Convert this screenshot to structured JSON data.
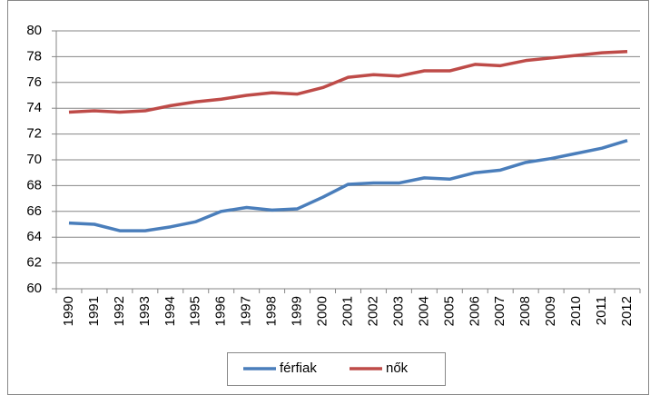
{
  "chart_data": {
    "type": "line",
    "categories": [
      "1990",
      "1991",
      "1992",
      "1993",
      "1994",
      "1995",
      "1996",
      "1997",
      "1998",
      "1999",
      "2000",
      "2001",
      "2002",
      "2003",
      "2004",
      "2005",
      "2006",
      "2007",
      "2008",
      "2009",
      "2010",
      "2011",
      "2012"
    ],
    "series": [
      {
        "name": "férfiak",
        "color": "#4a7ebb",
        "values": [
          65.1,
          65.0,
          64.5,
          64.5,
          64.8,
          65.2,
          66.0,
          66.3,
          66.1,
          66.2,
          67.1,
          68.1,
          68.2,
          68.2,
          68.6,
          68.5,
          69.0,
          69.2,
          69.8,
          70.1,
          70.5,
          70.9,
          71.5
        ]
      },
      {
        "name": "nők",
        "color": "#be4b48",
        "values": [
          73.7,
          73.8,
          73.7,
          73.8,
          74.2,
          74.5,
          74.7,
          75.0,
          75.2,
          75.1,
          75.6,
          76.4,
          76.6,
          76.5,
          76.9,
          76.9,
          77.4,
          77.3,
          77.7,
          77.9,
          78.1,
          78.3,
          78.4
        ]
      }
    ],
    "ylim": [
      60,
      80
    ],
    "yticks": [
      60,
      62,
      64,
      66,
      68,
      70,
      72,
      74,
      76,
      78,
      80
    ],
    "grid": true,
    "legend": "bottom"
  }
}
